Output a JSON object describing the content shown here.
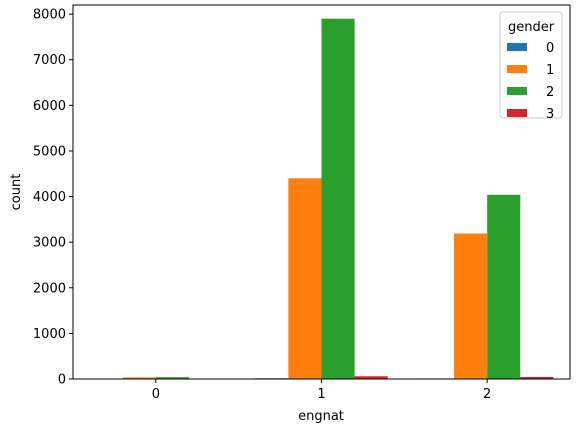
{
  "chart_data": {
    "type": "bar",
    "categories": [
      "0",
      "1",
      "2"
    ],
    "xlabel": "engnat",
    "ylabel": "count",
    "ylim": [
      0,
      8200
    ],
    "yticks": [
      0,
      1000,
      2000,
      3000,
      4000,
      5000,
      6000,
      7000,
      8000
    ],
    "grid": false,
    "legend": {
      "title": "gender",
      "placement": "top-right"
    },
    "series": [
      {
        "name": "0",
        "color": "#1f77b4",
        "values": [
          2,
          16,
          12
        ]
      },
      {
        "name": "1",
        "color": "#ff7f0e",
        "values": [
          35,
          4400,
          3190
        ]
      },
      {
        "name": "2",
        "color": "#2ca02c",
        "values": [
          40,
          7900,
          4040
        ]
      },
      {
        "name": "3",
        "color": "#d62728",
        "values": [
          1,
          60,
          45
        ]
      }
    ]
  }
}
